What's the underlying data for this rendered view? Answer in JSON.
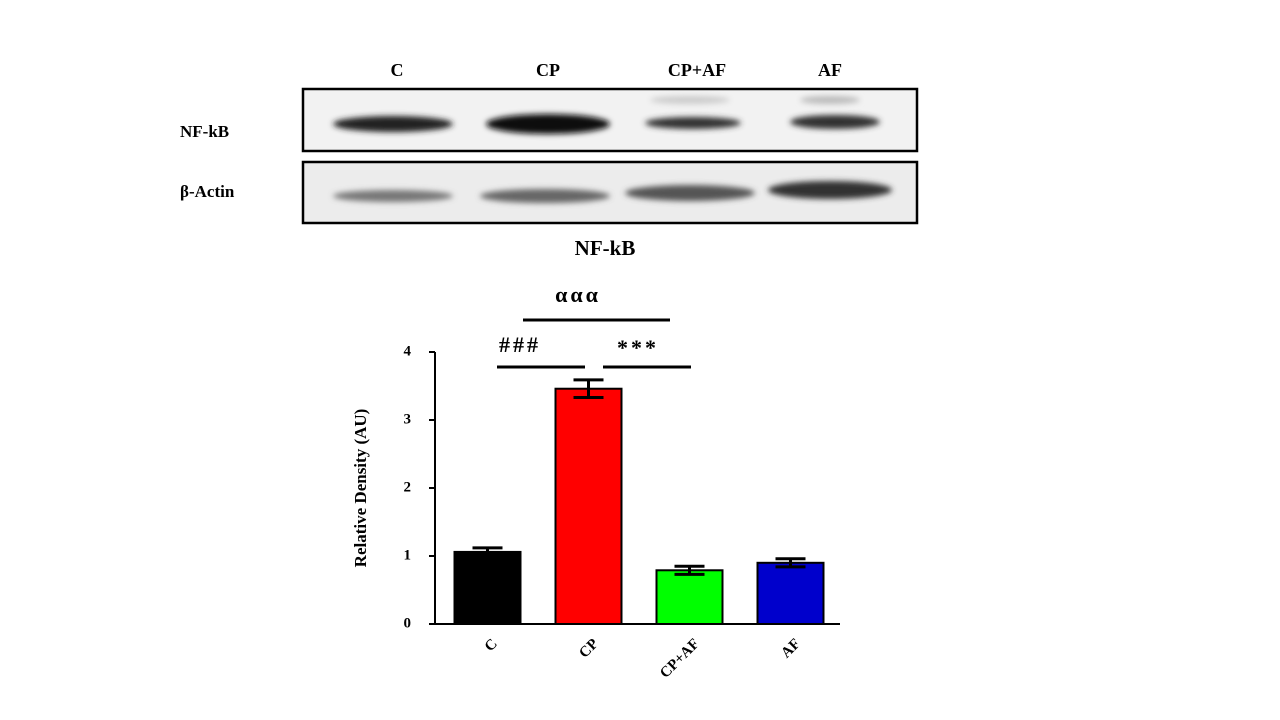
{
  "blot": {
    "lanes": [
      "C",
      "CP",
      "CP+AF",
      "AF"
    ],
    "rows": [
      "NF-kB",
      "β-Actin"
    ]
  },
  "chart_data": {
    "type": "bar",
    "title": "NF-kB",
    "ylabel": "Relative Density (AU)",
    "categories": [
      "C",
      "CP",
      "CP+AF",
      "AF"
    ],
    "values": [
      1.06,
      3.46,
      0.79,
      0.9
    ],
    "errors": [
      0.06,
      0.13,
      0.06,
      0.06
    ],
    "colors": [
      "#000000",
      "#ff0000",
      "#00ff00",
      "#0000cc"
    ],
    "ylim": [
      0,
      4
    ],
    "yticks": [
      0,
      1,
      2,
      3,
      4
    ],
    "annotations": [
      "###",
      "***",
      "ααα"
    ]
  }
}
